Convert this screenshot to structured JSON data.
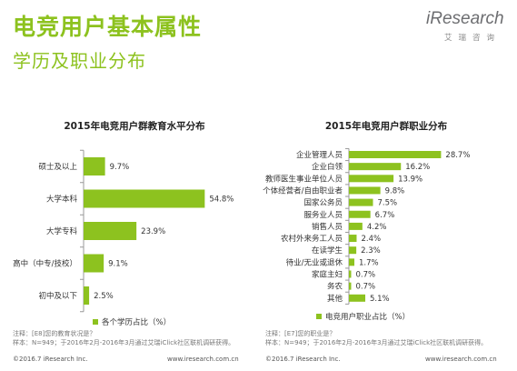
{
  "header": {
    "title": "电竞用户基本属性",
    "subtitle": "学历及职业分布"
  },
  "logo": {
    "brand": "iResearch",
    "sub": "艾瑞咨询"
  },
  "colors": {
    "accent": "#8dc21f",
    "bar": "#8dc21f",
    "axis": "#999999"
  },
  "chart_data": [
    {
      "type": "bar",
      "orientation": "horizontal",
      "title": "2015年电竞用户群教育水平分布",
      "categories": [
        "硕士及以上",
        "大学本科",
        "大学专科",
        "高中（中专/技校）",
        "初中及以下"
      ],
      "values": [
        9.7,
        54.8,
        23.9,
        9.1,
        2.5
      ],
      "value_labels": [
        "9.7%",
        "54.8%",
        "23.9%",
        "9.1%",
        "2.5%"
      ],
      "xlim": [
        0,
        60
      ],
      "series": [
        {
          "name": "各个学历占比（%）",
          "values": [
            9.7,
            54.8,
            23.9,
            9.1,
            2.5
          ]
        }
      ],
      "legend": "bottom",
      "grid": false
    },
    {
      "type": "bar",
      "orientation": "horizontal",
      "title": "2015年电竞用户群职业分布",
      "categories": [
        "企业管理人员",
        "企业白领",
        "教师医生事业单位人员",
        "个体经营者/自由职业者",
        "国家公务员",
        "服务业人员",
        "销售人员",
        "农村外来务工人员",
        "在读学生",
        "待业/无业或退休",
        "家庭主妇",
        "务农",
        "其他"
      ],
      "values": [
        28.7,
        16.2,
        13.9,
        9.8,
        7.5,
        6.7,
        4.2,
        2.4,
        2.3,
        1.7,
        0.7,
        0.7,
        5.1
      ],
      "value_labels": [
        "28.7%",
        "16.2%",
        "13.9%",
        "9.8%",
        "7.5%",
        "6.7%",
        "4.2%",
        "2.4%",
        "2.3%",
        "1.7%",
        "0.7%",
        "0.7%",
        "5.1%"
      ],
      "xlim": [
        0,
        30
      ],
      "series": [
        {
          "name": "电竞用户职业占比（%）",
          "values": [
            28.7,
            16.2,
            13.9,
            9.8,
            7.5,
            6.7,
            4.2,
            2.4,
            2.3,
            1.7,
            0.7,
            0.7,
            5.1
          ]
        }
      ],
      "legend": "bottom",
      "grid": false
    }
  ],
  "notes": {
    "left": {
      "line1": "注释：[E8]您的教育状况是？",
      "line2": "样本：N=949；于2016年2月-2016年3月通过艾瑞iClick社区联机调研获得。"
    },
    "right": {
      "line1": "注释：[E7]您的职业是？",
      "line2": "样本：N=949；于2016年2月-2016年3月通过艾瑞iClick社区联机调研获得。"
    }
  },
  "footer": {
    "left_copyright": "©2016.7 iResearch Inc.",
    "left_url": "www.iresearch.com.cn",
    "right_copyright": "©2016.7 iResearch Inc.",
    "right_url": "www.iresearch.com.cn"
  }
}
